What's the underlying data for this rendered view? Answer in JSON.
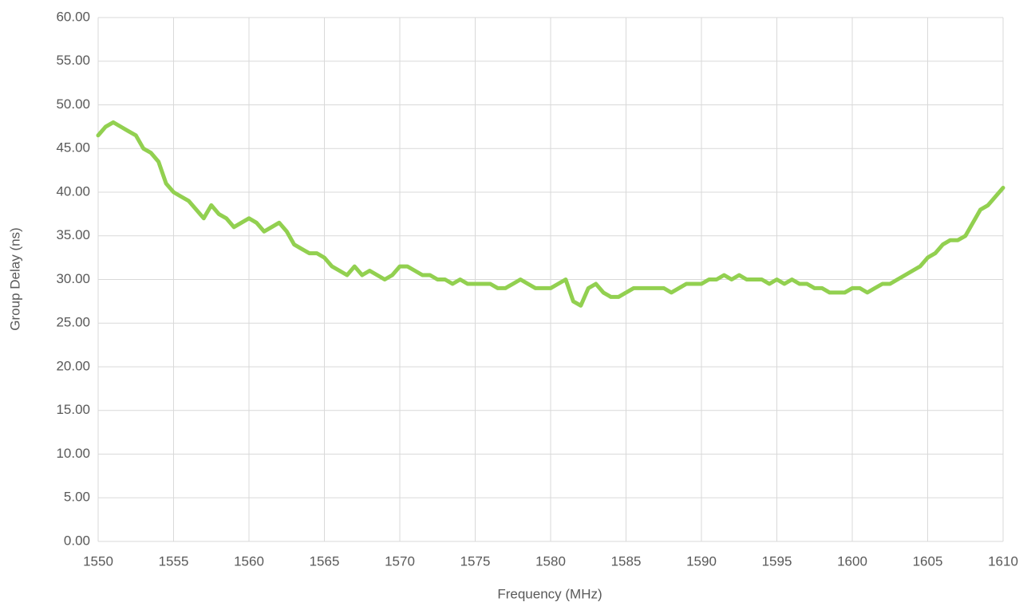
{
  "chart_data": {
    "type": "line",
    "x_label": "Frequency (MHz)",
    "y_label": "Group Delay (ns)",
    "x": [
      1550,
      1550.5,
      1551,
      1551.5,
      1552,
      1552.5,
      1553,
      1553.5,
      1554,
      1554.5,
      1555,
      1555.5,
      1556,
      1556.5,
      1557,
      1557.5,
      1558,
      1558.5,
      1559,
      1559.5,
      1560,
      1560.5,
      1561,
      1561.5,
      1562,
      1562.5,
      1563,
      1563.5,
      1564,
      1564.5,
      1565,
      1565.5,
      1566,
      1566.5,
      1567,
      1567.5,
      1568,
      1568.5,
      1569,
      1569.5,
      1570,
      1570.5,
      1571,
      1571.5,
      1572,
      1572.5,
      1573,
      1573.5,
      1574,
      1574.5,
      1575,
      1575.5,
      1576,
      1576.5,
      1577,
      1577.5,
      1578,
      1578.5,
      1579,
      1579.5,
      1580,
      1580.5,
      1581,
      1581.5,
      1582,
      1582.5,
      1583,
      1583.5,
      1584,
      1584.5,
      1585,
      1585.5,
      1586,
      1586.5,
      1587,
      1587.5,
      1588,
      1588.5,
      1589,
      1589.5,
      1590,
      1590.5,
      1591,
      1591.5,
      1592,
      1592.5,
      1593,
      1593.5,
      1594,
      1594.5,
      1595,
      1595.5,
      1596,
      1596.5,
      1597,
      1597.5,
      1598,
      1598.5,
      1599,
      1599.5,
      1600,
      1600.5,
      1601,
      1601.5,
      1602,
      1602.5,
      1603,
      1603.5,
      1604,
      1604.5,
      1605,
      1605.5,
      1606,
      1606.5,
      1607,
      1607.5,
      1608,
      1608.5,
      1609,
      1609.5,
      1610
    ],
    "values": [
      46.5,
      47.5,
      48,
      47.5,
      47,
      46.5,
      45,
      44.5,
      43.5,
      41,
      40,
      39.5,
      39,
      38,
      37,
      38.5,
      37.5,
      37,
      36,
      36.5,
      37,
      36.5,
      35.5,
      36,
      36.5,
      35.5,
      34,
      33.5,
      33,
      33,
      32.5,
      31.5,
      31,
      30.5,
      31.5,
      30.5,
      31,
      30.5,
      30,
      30.5,
      31.5,
      31.5,
      31,
      30.5,
      30.5,
      30,
      30,
      29.5,
      30,
      29.5,
      29.5,
      29.5,
      29.5,
      29,
      29,
      29.5,
      30,
      29.5,
      29,
      29,
      29,
      29.5,
      30,
      27.5,
      27,
      29,
      29.5,
      28.5,
      28,
      28,
      28.5,
      29,
      29,
      29,
      29,
      29,
      28.5,
      29,
      29.5,
      29.5,
      29.5,
      30,
      30,
      30.5,
      30,
      30.5,
      30,
      30,
      30,
      29.5,
      30,
      29.5,
      30,
      29.5,
      29.5,
      29,
      29,
      28.5,
      28.5,
      28.5,
      29,
      29,
      28.5,
      29,
      29.5,
      29.5,
      30,
      30.5,
      31,
      31.5,
      32.5,
      33,
      34,
      34.5,
      34.5,
      35,
      36.5,
      38,
      38.5,
      39.5,
      40.5
    ],
    "color": "#92d050",
    "xlim": [
      1550,
      1610
    ],
    "xticks": [
      1550,
      1555,
      1560,
      1565,
      1570,
      1575,
      1580,
      1585,
      1590,
      1595,
      1600,
      1605,
      1610
    ],
    "ylim": [
      0,
      60
    ],
    "yticks": [
      {
        "value": 0,
        "label": "0.00"
      },
      {
        "value": 5,
        "label": "5.00"
      },
      {
        "value": 10,
        "label": "10.00"
      },
      {
        "value": 15,
        "label": "15.00"
      },
      {
        "value": 20,
        "label": "20.00"
      },
      {
        "value": 25,
        "label": "25.00"
      },
      {
        "value": 30,
        "label": "30.00"
      },
      {
        "value": 35,
        "label": "35.00"
      },
      {
        "value": 40,
        "label": "40.00"
      },
      {
        "value": 45,
        "label": "45.00"
      },
      {
        "value": 50,
        "label": "50.00"
      },
      {
        "value": 55,
        "label": "55.00"
      },
      {
        "value": 60,
        "label": "60.00"
      }
    ],
    "grid": true
  }
}
